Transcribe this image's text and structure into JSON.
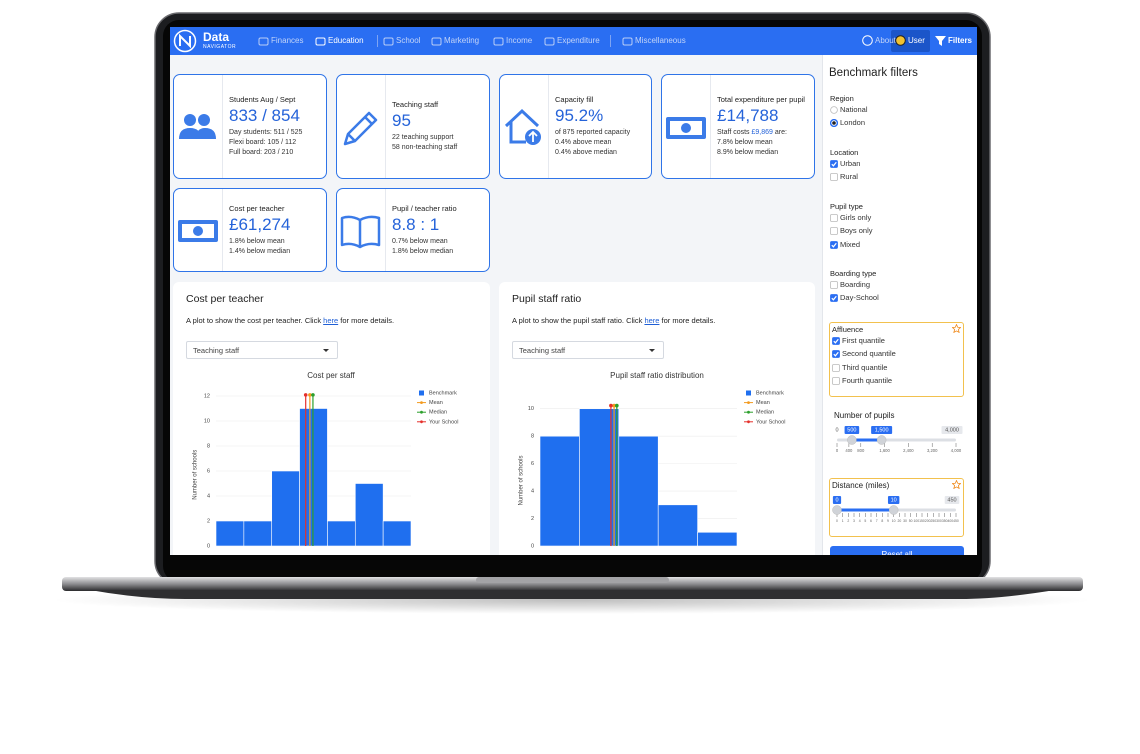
{
  "nav": {
    "brand": "Data",
    "brand_sub": "NAVIGATOR",
    "items": [
      "Finances",
      "Education",
      "School",
      "Marketing",
      "Income",
      "Expenditure",
      "Miscellaneous"
    ],
    "active_index": 1,
    "right": [
      "About",
      "User",
      "Filters"
    ]
  },
  "cards": [
    {
      "title": "Students Aug / Sept",
      "value": "833 / 854",
      "lines": [
        "Day students: 511 / 525",
        "Flexi board: 105 / 112",
        "Full board: 203 / 210"
      ]
    },
    {
      "title": "Teaching staff",
      "value": "95",
      "lines": [
        "22 teaching support",
        "58 non-teaching staff"
      ]
    },
    {
      "title": "Capacity fill",
      "value": "95.2%",
      "lines": [
        "of 875 reported capacity",
        "0.4% above mean",
        "0.4% above median"
      ]
    },
    {
      "title": "Total expenditure per pupil",
      "value": "£14,788",
      "lines": [
        [
          "Staff costs ",
          "£9,869",
          " are:"
        ],
        "7.8% below mean",
        "8.9% below median"
      ]
    },
    {
      "title": "Cost per teacher",
      "value": "£61,274",
      "lines": [
        "1.8% below mean",
        "1.4% below median"
      ]
    },
    {
      "title": "Pupil / teacher ratio",
      "value": "8.8 : 1",
      "lines": [
        "0.7% below mean",
        "1.8% below median"
      ]
    }
  ],
  "panels": [
    {
      "title": "Cost per teacher",
      "text_before": "A plot to show the cost per teacher. Click ",
      "link": "here",
      "text_after": " for more details.",
      "dropdown": "Teaching staff",
      "chart_data": {
        "type": "histogram",
        "title": "Cost per staff",
        "y_label": "Number of schools",
        "series_name": "Benchmark",
        "color": "#1f6fef",
        "bins": [
          0,
          1,
          2,
          3,
          4,
          5,
          6,
          7
        ],
        "values": [
          2,
          2,
          6,
          11,
          2,
          5,
          2
        ],
        "xlim": [
          0,
          7
        ],
        "ylim": [
          0,
          13
        ],
        "yticks": [
          0,
          2,
          4,
          6,
          8,
          10,
          12
        ],
        "markers": [
          {
            "name": "Mean",
            "color": "#f39a1e",
            "x": 3.37
          },
          {
            "name": "Median",
            "color": "#2ca02c",
            "x": 3.48
          },
          {
            "name": "Your School",
            "color": "#e5302b",
            "x": 3.22
          }
        ]
      }
    },
    {
      "title": "Pupil staff ratio",
      "text_before": "A plot to show the pupil staff ratio. Click ",
      "link": "here",
      "text_after": " for more details.",
      "dropdown": "Teaching staff",
      "chart_data": {
        "type": "histogram",
        "title": "Pupil staff ratio distribution",
        "y_label": "Number of schools",
        "series_name": "Benchmark",
        "color": "#1f6fef",
        "bins": [
          0,
          1,
          2,
          3,
          4,
          5
        ],
        "values": [
          8,
          10,
          8,
          3,
          1
        ],
        "xlim": [
          0,
          5
        ],
        "ylim": [
          0,
          11
        ],
        "yticks": [
          0,
          2,
          4,
          6,
          8,
          10
        ],
        "markers": [
          {
            "name": "Mean",
            "color": "#f39a1e",
            "x": 1.88
          },
          {
            "name": "Median",
            "color": "#2ca02c",
            "x": 1.95
          },
          {
            "name": "Your School",
            "color": "#e5302b",
            "x": 1.8
          }
        ]
      }
    }
  ],
  "sidebar": {
    "title": "Benchmark filters",
    "groups": [
      {
        "label": "Region",
        "kind": "radio",
        "options": [
          "National",
          "London"
        ],
        "checked": [
          false,
          true
        ]
      },
      {
        "label": "Location",
        "kind": "checkbox",
        "options": [
          "Urban",
          "Rural"
        ],
        "checked": [
          true,
          false
        ]
      },
      {
        "label": "Pupil type",
        "kind": "checkbox",
        "options": [
          "Girls only",
          "Boys only",
          "Mixed"
        ],
        "checked": [
          false,
          false,
          true
        ]
      },
      {
        "label": "Boarding type",
        "kind": "checkbox",
        "options": [
          "Boarding",
          "Day-School"
        ],
        "checked": [
          false,
          true
        ]
      },
      {
        "label": "Affluence",
        "kind": "checkbox",
        "options": [
          "First quantile",
          "Second quantile",
          "Third quantile",
          "Fourth quantile"
        ],
        "checked": [
          true,
          true,
          false,
          false
        ],
        "highlighted": true
      }
    ],
    "sliders": [
      {
        "label": "Number of pupils",
        "scale": "linear",
        "min": 0,
        "max": {
          "value": 4000,
          "label": "4,000"
        },
        "low": 500,
        "high": {
          "value": 1500,
          "label": "1,500"
        },
        "ticks": [
          0,
          400,
          800,
          {
            "value": 1600,
            "label": "1,600"
          },
          {
            "value": 2400,
            "label": "2,400"
          },
          {
            "value": 3200,
            "label": "3,200"
          },
          {
            "value": 4000,
            "label": "4,000"
          }
        ]
      },
      {
        "label": "Distance (miles)",
        "scale": "ticks",
        "highlighted": true,
        "max": 450,
        "low": 0,
        "high": 10,
        "ticks": [
          0,
          1,
          2,
          3,
          4,
          5,
          6,
          7,
          8,
          9,
          10,
          20,
          30,
          50,
          100,
          150,
          200,
          250,
          300,
          350,
          400,
          450
        ]
      }
    ],
    "button": "Reset all"
  }
}
